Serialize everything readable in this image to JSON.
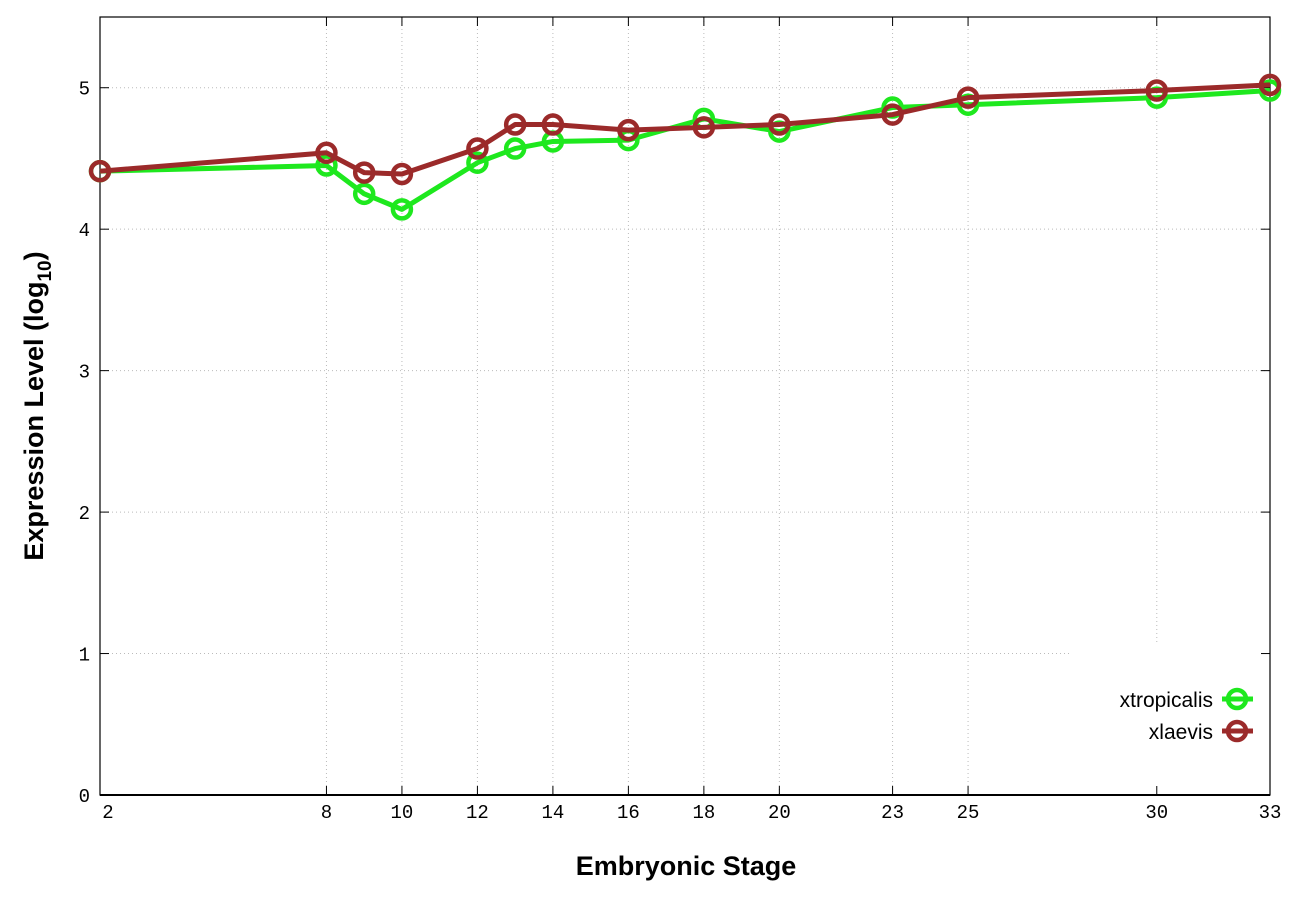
{
  "chart_data": {
    "type": "line",
    "title": "",
    "xlabel": "Embryonic Stage",
    "ylabel": {
      "main": "Expression Level (log",
      "sub": "10",
      "end": ")"
    },
    "xlim": [
      2,
      33
    ],
    "ylim": [
      0,
      5.5
    ],
    "x_ticks": [
      2,
      8,
      10,
      12,
      14,
      16,
      18,
      20,
      23,
      25,
      30,
      33
    ],
    "y_ticks": [
      0,
      1,
      2,
      3,
      4,
      5
    ],
    "grid": true,
    "legend_position": "bottom-right",
    "x": [
      2,
      8,
      9,
      10,
      12,
      13,
      14,
      16,
      18,
      20,
      23,
      25,
      30,
      33
    ],
    "series": [
      {
        "name": "xtropicalis",
        "color": "#1ee81e",
        "values": [
          4.41,
          4.45,
          4.25,
          4.14,
          4.47,
          4.57,
          4.62,
          4.63,
          4.78,
          4.69,
          4.86,
          4.88,
          4.93,
          4.98
        ]
      },
      {
        "name": "xlaevis",
        "color": "#9b2a2a",
        "values": [
          4.41,
          4.54,
          4.4,
          4.39,
          4.57,
          4.74,
          4.74,
          4.7,
          4.72,
          4.74,
          4.81,
          4.93,
          4.98,
          5.02
        ]
      }
    ]
  }
}
